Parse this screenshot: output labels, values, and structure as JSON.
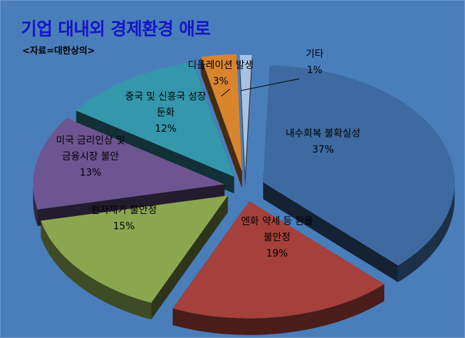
{
  "chart_data": {
    "type": "pie",
    "title": "기업 대내외 경제환경 애로",
    "subtitle": "<자료=대한상의>",
    "slices": [
      {
        "label_lines": [
          "내수회복 불확실성"
        ],
        "value": 37,
        "value_label": "37%",
        "color": "#3e6aa1"
      },
      {
        "label_lines": [
          "엔화 약세 등 환율",
          "불안정"
        ],
        "value": 19,
        "value_label": "19%",
        "color": "#a5403b"
      },
      {
        "label_lines": [
          "원자재가 불안정"
        ],
        "value": 15,
        "value_label": "15%",
        "color": "#8ca650"
      },
      {
        "label_lines": [
          "미국 금리인상 및",
          "금융시장 불안"
        ],
        "value": 13,
        "value_label": "13%",
        "color": "#6c5590"
      },
      {
        "label_lines": [
          "중국 및 신흥국 성장",
          "둔화"
        ],
        "value": 12,
        "value_label": "12%",
        "color": "#3497ac"
      },
      {
        "label_lines": [
          "디플레이션 발생"
        ],
        "value": 3,
        "value_label": "3%",
        "color": "#d9852e"
      },
      {
        "label_lines": [
          "기타"
        ],
        "value": 1,
        "value_label": "1%",
        "color": "#a9c2e4"
      }
    ]
  }
}
